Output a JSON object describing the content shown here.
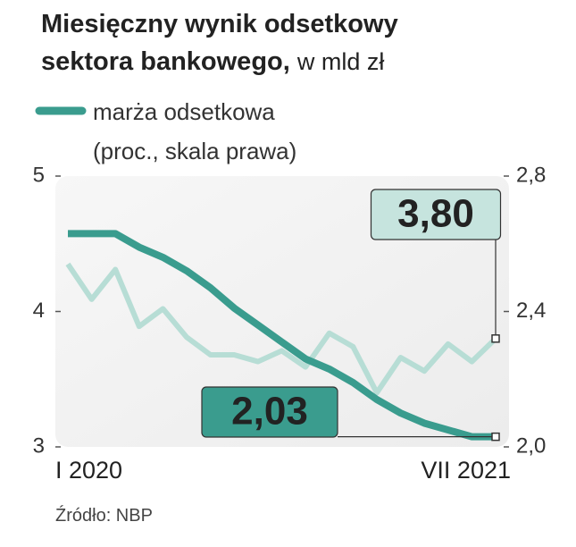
{
  "chart_data": {
    "type": "line",
    "title": [
      "Miesięczny wynik odsetkowy",
      "sektora bankowego,"
    ],
    "unit": "w mld zł",
    "categories": [
      "I 2020",
      null,
      null,
      null,
      null,
      null,
      null,
      null,
      null,
      null,
      null,
      null,
      null,
      null,
      null,
      null,
      null,
      null,
      "VII 2021"
    ],
    "series": [
      {
        "color": "#b7ddd5",
        "values": [
          4.35,
          4.09,
          4.31,
          3.89,
          4.02,
          3.81,
          3.68,
          3.68,
          3.63,
          3.71,
          3.59,
          3.84,
          3.74,
          3.4,
          3.66,
          3.56,
          3.76,
          3.63,
          3.8
        ],
        "value_labels": [
          null,
          null,
          null,
          null,
          null,
          null,
          null,
          null,
          null,
          null,
          null,
          null,
          null,
          null,
          null,
          null,
          null,
          null,
          "3,80"
        ]
      },
      {
        "name": "marża odsetkowa",
        "note": "(proc., skala prawa)",
        "color": "#3a9c8e",
        "axis": "y2",
        "values": [
          2.63,
          2.63,
          2.63,
          2.59,
          2.56,
          2.52,
          2.47,
          2.41,
          2.36,
          2.31,
          2.26,
          2.23,
          2.19,
          2.14,
          2.1,
          2.07,
          2.05,
          2.03,
          2.03
        ],
        "value_labels": [
          null,
          null,
          null,
          null,
          null,
          null,
          null,
          null,
          null,
          null,
          null,
          null,
          null,
          null,
          null,
          null,
          null,
          null,
          "2,03"
        ]
      }
    ],
    "ylim": [
      3,
      5
    ],
    "yticks": [
      3,
      4,
      5
    ],
    "y2lim": [
      2.0,
      2.8
    ],
    "y2ticks": [
      {
        "value": 2.0,
        "label": "2,0"
      },
      {
        "value": 2.4,
        "label": "2,4"
      },
      {
        "value": 2.8,
        "label": "2,8"
      }
    ],
    "source": "Źródło: NBP"
  }
}
